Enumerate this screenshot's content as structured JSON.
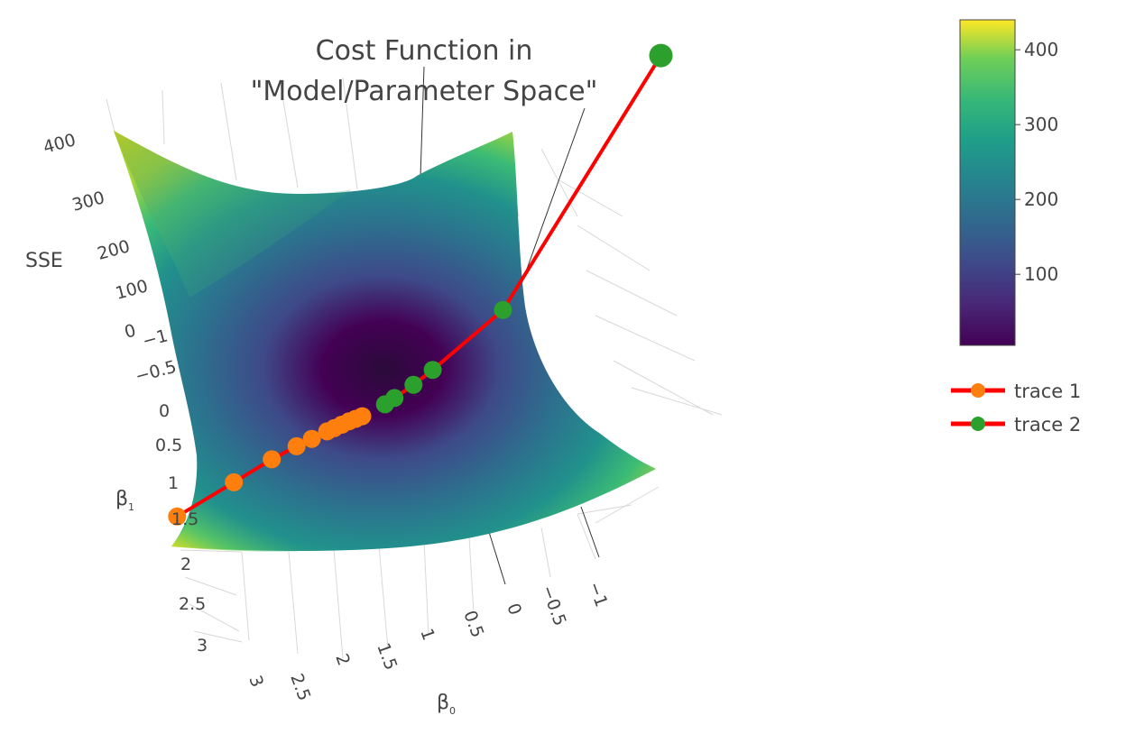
{
  "chart_data": {
    "type": "surface",
    "title_lines": [
      "Cost Function in",
      "\"Model/Parameter Space\""
    ],
    "axes": {
      "x": {
        "label": "β",
        "label_sub": "0",
        "ticks": [
          "3",
          "2.5",
          "2",
          "1.5",
          "1",
          "0.5",
          "0",
          "−0.5",
          "−1"
        ]
      },
      "y": {
        "label": "β",
        "label_sub": "1",
        "ticks": [
          "−1",
          "−0.5",
          "0",
          "0.5",
          "1",
          "1.5",
          "2",
          "2.5",
          "3"
        ]
      },
      "z": {
        "label": "SSE",
        "ticks": [
          "0",
          "100",
          "200",
          "300",
          "400"
        ]
      }
    },
    "colorscale": "viridis",
    "colorbar": {
      "range": [
        5,
        440
      ],
      "ticks": [
        "100",
        "200",
        "300",
        "400"
      ]
    },
    "series": [
      {
        "name": "trace 1",
        "line_color": "#ff0000",
        "marker_color": "#ff7f0e",
        "points": [
          [
            2.2,
            1.1,
            8
          ],
          [
            1.9,
            0.8,
            6
          ],
          [
            1.7,
            0.6,
            5
          ],
          [
            1.55,
            0.5,
            4
          ],
          [
            1.45,
            0.45,
            3.5
          ],
          [
            1.35,
            0.4,
            3
          ],
          [
            1.3,
            0.38,
            2.8
          ],
          [
            1.25,
            0.36,
            2.6
          ],
          [
            1.2,
            0.34,
            2.5
          ],
          [
            1.15,
            0.33,
            2.4
          ],
          [
            1.1,
            0.32,
            2.3
          ]
        ]
      },
      {
        "name": "trace 2",
        "line_color": "#ff0000",
        "marker_color": "#2ca02c",
        "points": [
          [
            -0.5,
            -1.0,
            420
          ],
          [
            0.3,
            -0.3,
            60
          ],
          [
            0.7,
            0.0,
            15
          ],
          [
            0.8,
            0.1,
            8
          ],
          [
            0.9,
            0.2,
            5
          ],
          [
            0.95,
            0.25,
            4
          ]
        ]
      }
    ]
  },
  "legend": {
    "items": [
      {
        "label": "trace 1"
      },
      {
        "label": "trace 2"
      }
    ]
  }
}
